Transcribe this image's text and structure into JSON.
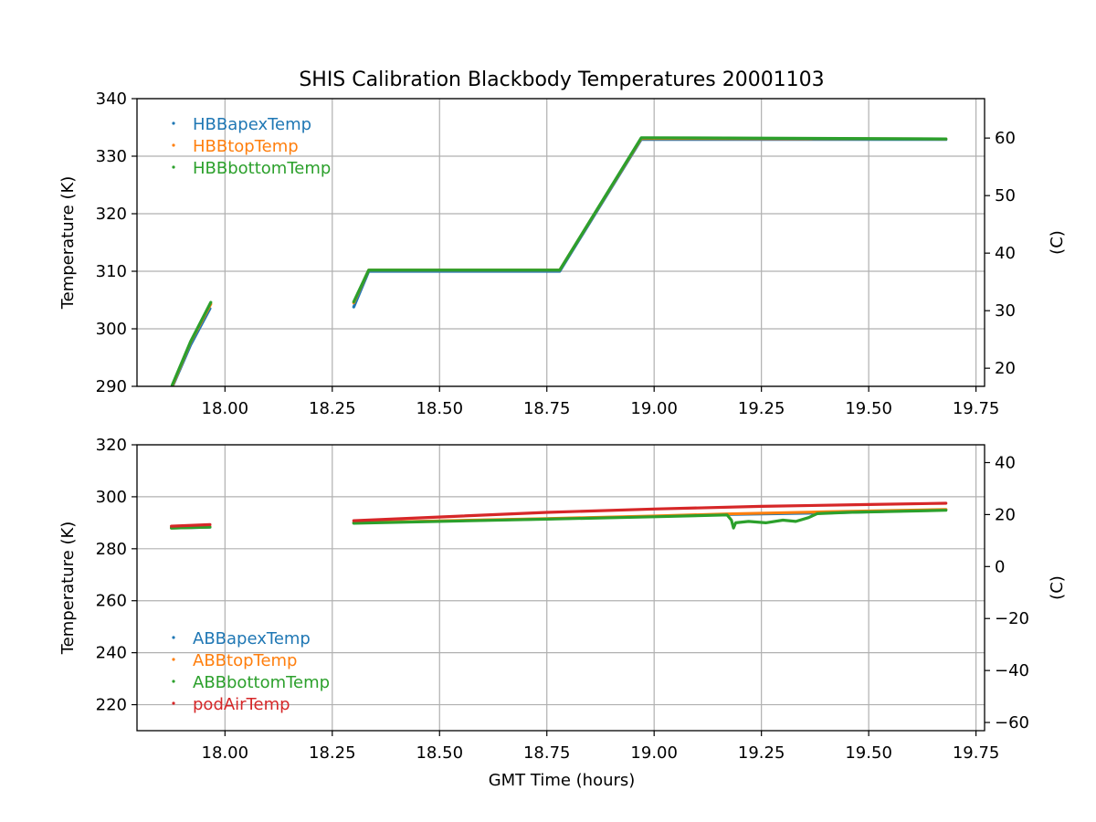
{
  "title": "SHIS Calibration Blackbody Temperatures 20001103",
  "colors": {
    "blue": "#1f77b4",
    "orange": "#ff7f0e",
    "green": "#2ca02c",
    "red": "#d62728",
    "grid": "#b0b0b0"
  },
  "chart_data": [
    {
      "type": "scatter",
      "name": "top-panel",
      "ylabel": "Temperature (K)",
      "y2label": "(C)",
      "xlabel": "",
      "xlim": [
        17.795,
        19.77
      ],
      "ylim": [
        290,
        340
      ],
      "y2lim": [
        16.85,
        66.85
      ],
      "xticks": [
        18.0,
        18.25,
        18.5,
        18.75,
        19.0,
        19.25,
        19.5,
        19.75
      ],
      "xtick_labels": [
        "18.00",
        "18.25",
        "18.50",
        "18.75",
        "19.00",
        "19.25",
        "19.50",
        "19.75"
      ],
      "yticks": [
        290,
        300,
        310,
        320,
        330,
        340
      ],
      "ytick_labels": [
        "290",
        "300",
        "310",
        "320",
        "330",
        "340"
      ],
      "y2ticks": [
        20,
        30,
        40,
        50,
        60
      ],
      "y2tick_labels": [
        "20",
        "30",
        "40",
        "50",
        "60"
      ],
      "grid": true,
      "legend_position": "top-left",
      "series": [
        {
          "name": "HBBapexTemp",
          "color": "#1f77b4",
          "segments": [
            [
              [
                17.875,
                289.5
              ],
              [
                17.92,
                297.2
              ],
              [
                17.965,
                303.5
              ]
            ],
            [
              [
                18.3,
                303.8
              ],
              [
                18.335,
                310.0
              ],
              [
                18.78,
                310.0
              ],
              [
                18.97,
                332.9
              ],
              [
                19.68,
                332.9
              ]
            ]
          ]
        },
        {
          "name": "HBBtopTemp",
          "color": "#ff7f0e",
          "segments": [
            [
              [
                17.877,
                290.0
              ],
              [
                17.92,
                297.7
              ],
              [
                17.967,
                304.3
              ]
            ],
            [
              [
                18.3,
                304.5
              ],
              [
                18.335,
                310.2
              ],
              [
                18.78,
                310.2
              ],
              [
                18.97,
                333.1
              ],
              [
                19.68,
                333.0
              ]
            ]
          ]
        },
        {
          "name": "HBBbottomTemp",
          "color": "#2ca02c",
          "segments": [
            [
              [
                17.877,
                290.2
              ],
              [
                17.92,
                297.8
              ],
              [
                17.967,
                304.6
              ]
            ],
            [
              [
                18.3,
                304.7
              ],
              [
                18.335,
                310.2
              ],
              [
                18.78,
                310.2
              ],
              [
                18.97,
                333.2
              ],
              [
                19.68,
                333.0
              ]
            ]
          ]
        }
      ]
    },
    {
      "type": "scatter",
      "name": "bottom-panel",
      "ylabel": "Temperature (K)",
      "y2label": "(C)",
      "xlabel": "GMT Time (hours)",
      "xlim": [
        17.795,
        19.77
      ],
      "ylim": [
        210,
        320
      ],
      "y2lim": [
        -63.15,
        46.85
      ],
      "xticks": [
        18.0,
        18.25,
        18.5,
        18.75,
        19.0,
        19.25,
        19.5,
        19.75
      ],
      "xtick_labels": [
        "18.00",
        "18.25",
        "18.50",
        "18.75",
        "19.00",
        "19.25",
        "19.50",
        "19.75"
      ],
      "yticks": [
        220,
        240,
        260,
        280,
        300,
        320
      ],
      "ytick_labels": [
        "220",
        "240",
        "260",
        "280",
        "300",
        "320"
      ],
      "y2ticks": [
        -60,
        -40,
        -20,
        0,
        20,
        40
      ],
      "y2tick_labels": [
        "−60",
        "−40",
        "−20",
        "0",
        "20",
        "40"
      ],
      "grid": true,
      "legend_position": "lower-left",
      "series": [
        {
          "name": "ABBapexTemp",
          "color": "#1f77b4",
          "segments": [
            [
              [
                17.875,
                288.0
              ],
              [
                17.965,
                288.3
              ]
            ],
            [
              [
                18.3,
                290.0
              ],
              [
                18.75,
                291.5
              ],
              [
                19.0,
                292.5
              ],
              [
                19.17,
                293.2
              ],
              [
                19.4,
                293.8
              ],
              [
                19.68,
                295.0
              ]
            ]
          ]
        },
        {
          "name": "ABBtopTemp",
          "color": "#ff7f0e",
          "segments": [
            [
              [
                17.875,
                288.0
              ],
              [
                17.965,
                288.4
              ]
            ],
            [
              [
                18.3,
                290.0
              ],
              [
                18.75,
                291.6
              ],
              [
                19.0,
                292.6
              ],
              [
                19.17,
                293.4
              ],
              [
                19.4,
                294.2
              ],
              [
                19.68,
                295.1
              ]
            ]
          ]
        },
        {
          "name": "ABBbottomTemp",
          "color": "#2ca02c",
          "segments": [
            [
              [
                17.875,
                288.0
              ],
              [
                17.965,
                288.3
              ]
            ],
            [
              [
                18.3,
                289.8
              ],
              [
                18.75,
                291.4
              ],
              [
                19.0,
                292.3
              ],
              [
                19.17,
                293.0
              ],
              [
                19.18,
                291.0
              ],
              [
                19.185,
                288.0
              ],
              [
                19.19,
                290.0
              ],
              [
                19.22,
                290.5
              ],
              [
                19.26,
                290.0
              ],
              [
                19.3,
                291.0
              ],
              [
                19.33,
                290.5
              ],
              [
                19.36,
                292.0
              ],
              [
                19.38,
                293.5
              ],
              [
                19.45,
                294.0
              ],
              [
                19.68,
                294.8
              ]
            ]
          ]
        },
        {
          "name": "podAirTemp",
          "color": "#d62728",
          "segments": [
            [
              [
                17.875,
                288.7
              ],
              [
                17.965,
                289.3
              ]
            ],
            [
              [
                18.3,
                290.8
              ],
              [
                18.75,
                294.0
              ],
              [
                19.0,
                295.3
              ],
              [
                19.25,
                296.3
              ],
              [
                19.5,
                297.0
              ],
              [
                19.68,
                297.5
              ]
            ]
          ]
        }
      ]
    }
  ]
}
